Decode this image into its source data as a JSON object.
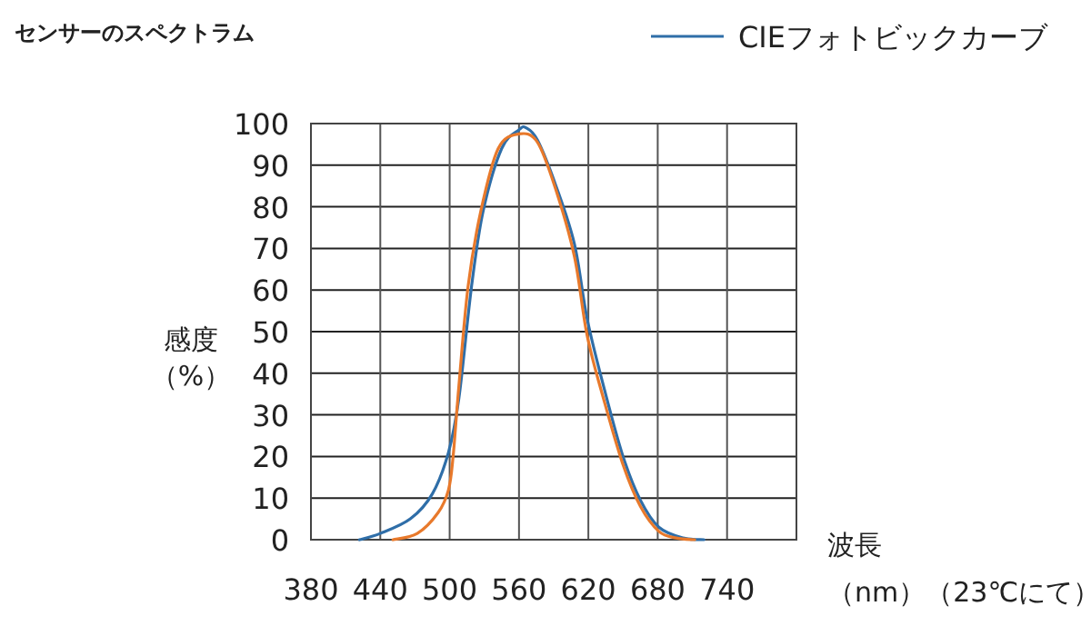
{
  "chart_data": {
    "type": "line",
    "title": "センサーのスペクトラム",
    "xlabel": "波長（nm）（23℃にて）",
    "ylabel": "感度（%）",
    "xlim": [
      380,
      800
    ],
    "xticks": [
      380,
      440,
      500,
      560,
      620,
      680,
      740,
      {
        "value": 800,
        "label": null
      }
    ],
    "ylim": [
      0,
      100
    ],
    "yticks": [
      0,
      10,
      20,
      30,
      40,
      50,
      60,
      70,
      80,
      90,
      100
    ],
    "grid": true,
    "legend": "top right",
    "marker": "none",
    "line_style": "solid",
    "series": [
      {
        "name": "CIEフォトビックカーブ",
        "color": "#2f6ea8",
        "x": [
          422,
          440,
          466,
          485,
          499,
          508,
          519,
          529,
          545,
          560,
          566,
          576,
          592,
          608,
          619,
          634,
          650,
          665,
          681,
          702,
          720
        ],
        "values": [
          0,
          1.5,
          5,
          11,
          21,
          34,
          61,
          79,
          94,
          98.5,
          99,
          96,
          85,
          71,
          53,
          36,
          20,
          9.5,
          3,
          0.4,
          0
        ]
      },
      {
        "color": "#e8792b",
        "x": [
          451,
          472,
          490,
          499,
          503,
          508,
          516,
          527,
          542,
          560,
          576,
          592,
          608,
          619,
          634,
          650,
          665,
          681,
          696,
          712
        ],
        "values": [
          0,
          1.5,
          6.5,
          12,
          20,
          37,
          61,
          79,
          94,
          97.5,
          95.5,
          84,
          68,
          49,
          33,
          18,
          8,
          2,
          0.4,
          0
        ]
      }
    ]
  }
}
